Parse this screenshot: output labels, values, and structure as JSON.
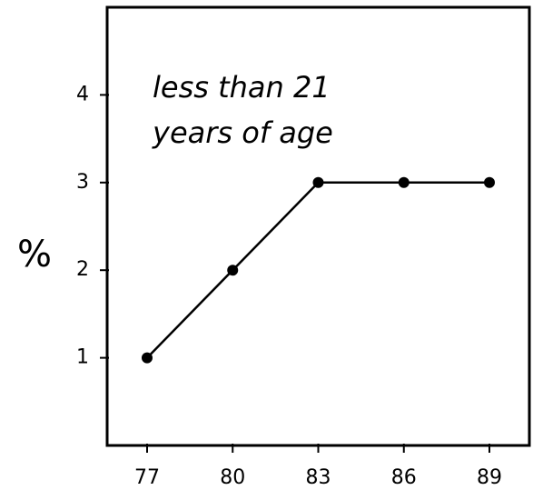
{
  "chart_data": {
    "type": "line",
    "ylabel": "%",
    "annotations": [
      "less than 21",
      "years of age"
    ],
    "x": [
      77,
      80,
      83,
      86,
      89
    ],
    "series": [
      {
        "color": "#000000",
        "values": [
          1,
          2,
          3,
          3,
          3
        ]
      }
    ],
    "xlim": [
      75.6,
      90.4
    ],
    "xticks": [
      77,
      80,
      83,
      86,
      89
    ],
    "ylim": [
      0,
      5
    ],
    "yticks": [
      1,
      2,
      3,
      4
    ]
  }
}
